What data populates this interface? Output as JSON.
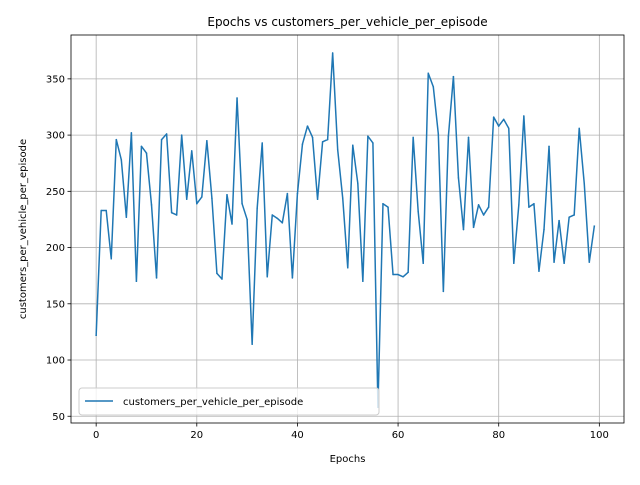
{
  "chart_data": {
    "type": "line",
    "title": "Epochs vs customers_per_vehicle_per_episode",
    "xlabel": "Epochs",
    "ylabel": "customers_per_vehicle_per_episode",
    "xlim": [
      -5,
      104.9
    ],
    "ylim": [
      44,
      389
    ],
    "xticks": [
      0,
      20,
      40,
      60,
      80,
      100
    ],
    "yticks": [
      50,
      100,
      150,
      200,
      250,
      300,
      350
    ],
    "xtick_labels": [
      "0",
      "20",
      "40",
      "60",
      "80",
      "100"
    ],
    "ytick_labels": [
      "50",
      "100",
      "150",
      "200",
      "250",
      "300",
      "350"
    ],
    "grid": true,
    "legend_position": "lower-left",
    "colors": {
      "series": "#1f77b4",
      "grid": "#b0b0b0",
      "axes": "#000000"
    },
    "x": [
      0,
      1,
      2,
      3,
      4,
      5,
      6,
      7,
      8,
      9,
      10,
      11,
      12,
      13,
      14,
      15,
      16,
      17,
      18,
      19,
      20,
      21,
      22,
      23,
      24,
      25,
      26,
      27,
      28,
      29,
      30,
      31,
      32,
      33,
      34,
      35,
      36,
      37,
      38,
      39,
      40,
      41,
      42,
      43,
      44,
      45,
      46,
      47,
      48,
      49,
      50,
      51,
      52,
      53,
      54,
      55,
      56,
      57,
      58,
      59,
      60,
      61,
      62,
      63,
      64,
      65,
      66,
      67,
      68,
      69,
      70,
      71,
      72,
      73,
      74,
      75,
      76,
      77,
      78,
      79,
      80,
      81,
      82,
      83,
      84,
      85,
      86,
      87,
      88,
      89,
      90,
      91,
      92,
      93,
      94,
      95,
      96,
      97,
      98,
      99
    ],
    "series": [
      {
        "name": "customers_per_vehicle_per_episode",
        "values": [
          122,
          233,
          233,
          190,
          296,
          278,
          227,
          302,
          170,
          290,
          284,
          238,
          173,
          296,
          301,
          231,
          229,
          300,
          243,
          286,
          239,
          245,
          295,
          244,
          177,
          172,
          247,
          221,
          333,
          239,
          225,
          114,
          235,
          293,
          174,
          229,
          226,
          222,
          248,
          173,
          248,
          292,
          308,
          298,
          243,
          294,
          296,
          373,
          287,
          244,
          182,
          291,
          257,
          170,
          299,
          293,
          58,
          239,
          236,
          176,
          176,
          174,
          178,
          298,
          232,
          186,
          355,
          343,
          301,
          161,
          299,
          352,
          262,
          216,
          298,
          218,
          238,
          229,
          236,
          316,
          308,
          314,
          306,
          186,
          238,
          317,
          236,
          239,
          179,
          216,
          290,
          187,
          224,
          186,
          227,
          229,
          306,
          257,
          187,
          219
        ]
      }
    ]
  }
}
